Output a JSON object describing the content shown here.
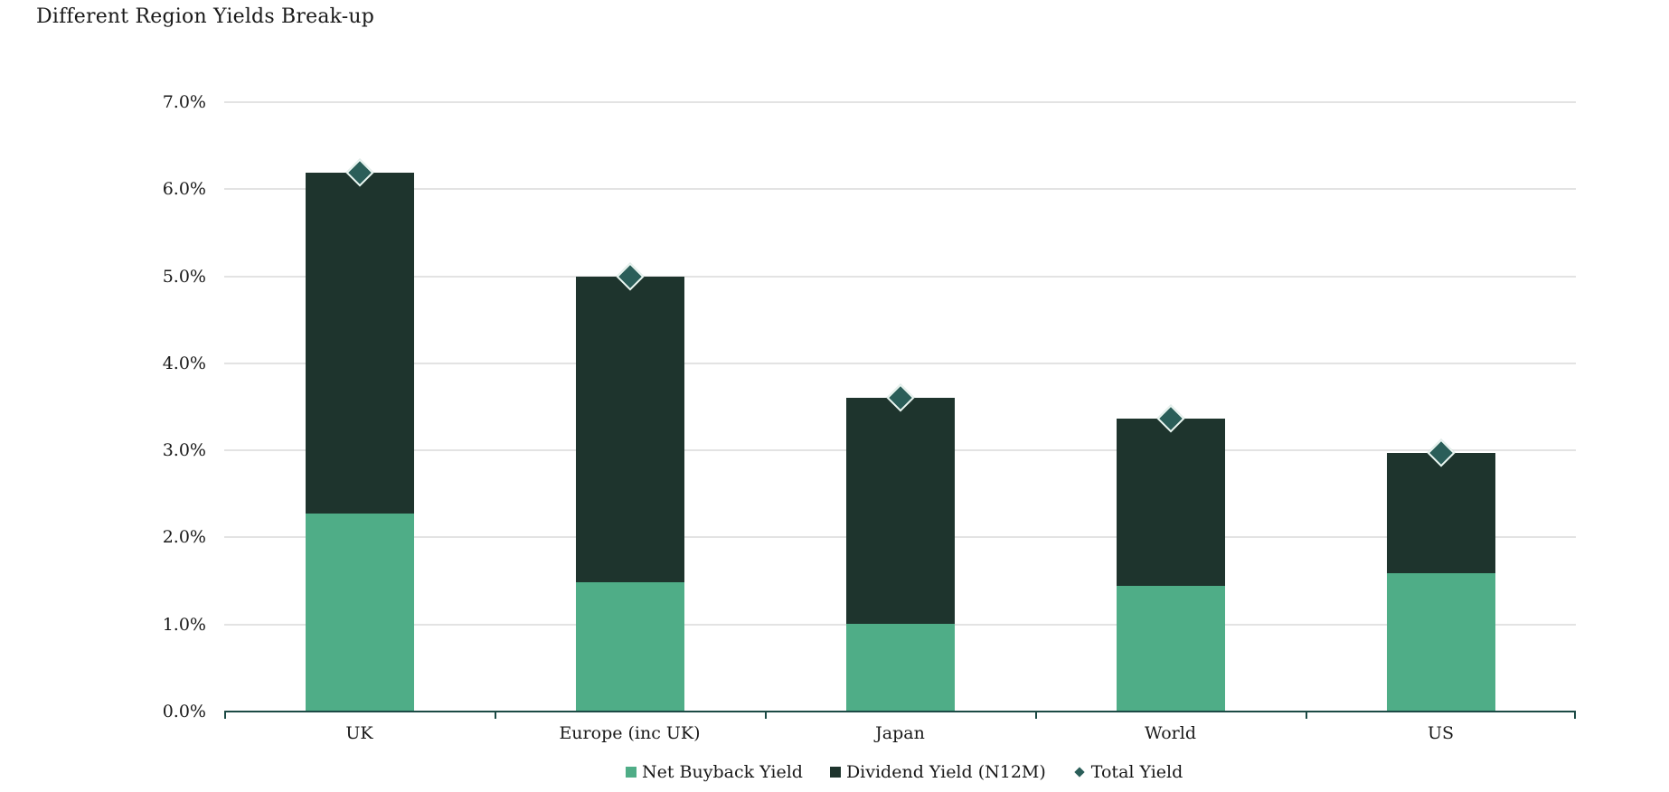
{
  "chart": {
    "title": "Different Region Yields Break-up",
    "colors": {
      "net_buyback": "#4fad87",
      "dividend": "#1e342d",
      "total_marker": "#2b5e59",
      "marker_stroke": "#ecf7f2",
      "axis": "#1c4a45",
      "gridline": "#e3e3e3",
      "text": "#191919",
      "background": "#ffffff"
    }
  },
  "chart_data": {
    "type": "bar",
    "stacked": true,
    "title": "Different Region Yields Break-up",
    "xlabel": "",
    "ylabel": "",
    "categories": [
      "UK",
      "Europe (inc UK)",
      "Japan",
      "World",
      "US"
    ],
    "series": [
      {
        "name": "Net Buyback Yield",
        "role": "bar",
        "color": "#4fad87",
        "values": [
          2.27,
          1.49,
          1.01,
          1.44,
          1.59
        ]
      },
      {
        "name": "Dividend Yield (N12M)",
        "role": "bar",
        "color": "#1e342d",
        "values": [
          3.92,
          3.51,
          2.59,
          1.93,
          1.38
        ]
      },
      {
        "name": "Total Yield",
        "role": "scatter-diamond",
        "color": "#2b5e59",
        "values": [
          6.19,
          5.0,
          3.6,
          3.37,
          2.97
        ]
      }
    ],
    "ylim": [
      0,
      7
    ],
    "ytick_step": 1,
    "ytick_labels": [
      "0.0%",
      "1.0%",
      "2.0%",
      "3.0%",
      "4.0%",
      "5.0%",
      "6.0%",
      "7.0%"
    ],
    "grid": true,
    "legend_position": "bottom"
  }
}
